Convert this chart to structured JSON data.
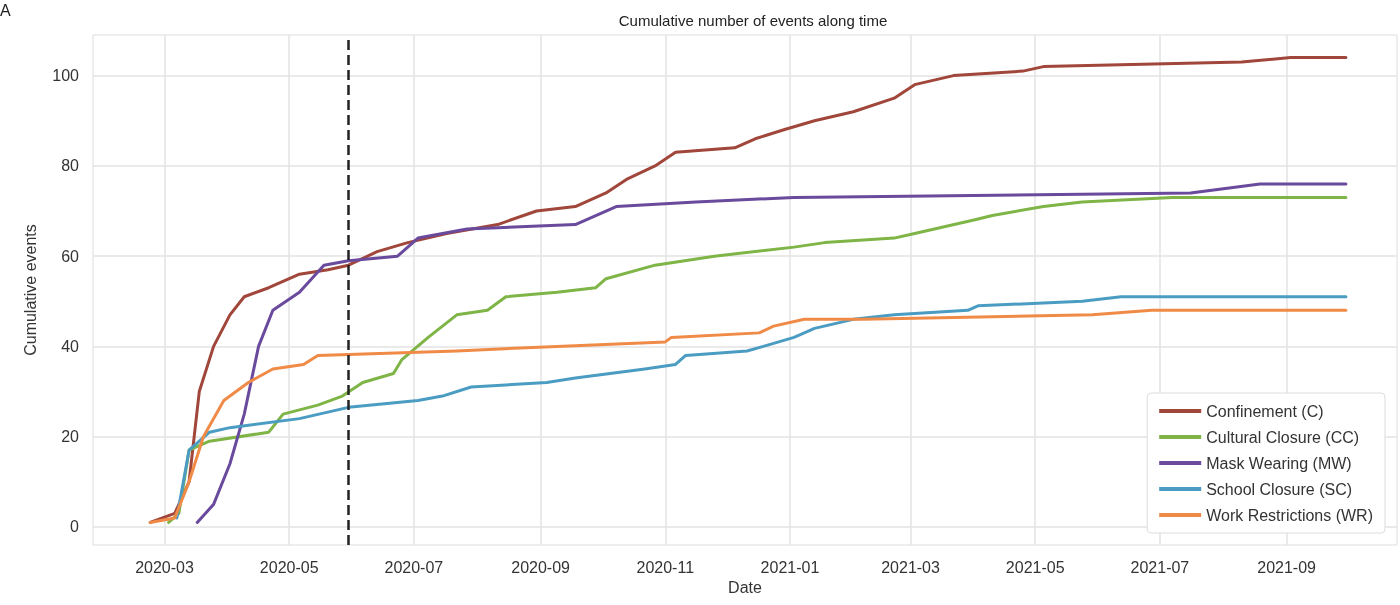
{
  "chart_data": {
    "type": "line",
    "title": "Cumulative number of events along time",
    "xlabel": "Date",
    "ylabel": "Cumulative events",
    "annotations": [
      "A"
    ],
    "xlim": [
      "2020-01-26",
      "2021-10-25"
    ],
    "ylim": [
      -4,
      109
    ],
    "xticks": [
      "2020-03",
      "2020-05",
      "2020-07",
      "2020-09",
      "2020-11",
      "2021-01",
      "2021-03",
      "2021-05",
      "2021-07",
      "2021-09"
    ],
    "yticks": [
      0,
      20,
      40,
      60,
      80,
      100
    ],
    "grid": true,
    "legend": "bottom right",
    "marker": "none",
    "line_style": "solid",
    "ref_lines": [
      {
        "axis": "x",
        "value": "2020-05-30",
        "color": "#222222",
        "line_style": "dashed"
      }
    ],
    "series": [
      {
        "name": "Confinement (C)",
        "color": "#a0463a",
        "x": [
          "2020-02-23",
          "2020-03-06",
          "2020-03-13",
          "2020-03-18",
          "2020-03-25",
          "2020-04-02",
          "2020-04-09",
          "2020-04-21",
          "2020-05-06",
          "2020-05-20",
          "2020-05-30",
          "2020-06-13",
          "2020-06-28",
          "2020-07-17",
          "2020-08-11",
          "2020-08-30",
          "2020-09-18",
          "2020-10-03",
          "2020-10-13",
          "2020-10-27",
          "2020-11-06",
          "2020-12-05",
          "2020-12-15",
          "2020-12-29",
          "2021-01-13",
          "2021-02-01",
          "2021-02-21",
          "2021-03-03",
          "2021-03-22",
          "2021-04-25",
          "2021-05-05",
          "2021-08-10",
          "2021-09-03",
          "2021-09-30"
        ],
        "values": [
          1,
          3,
          10,
          30,
          40,
          47,
          51,
          53,
          56,
          57,
          58,
          61,
          63,
          65,
          67,
          70,
          71,
          74,
          77,
          80,
          83,
          84,
          86,
          88,
          90,
          92,
          95,
          98,
          100,
          101,
          102,
          103,
          104,
          104
        ]
      },
      {
        "name": "Cultural Closure (CC)",
        "color": "#7fb446",
        "x": [
          "2020-03-03",
          "2020-03-08",
          "2020-03-13",
          "2020-03-23",
          "2020-04-21",
          "2020-04-28",
          "2020-05-15",
          "2020-05-27",
          "2020-06-06",
          "2020-06-21",
          "2020-06-25",
          "2020-07-08",
          "2020-07-22",
          "2020-08-06",
          "2020-08-15",
          "2020-09-09",
          "2020-09-28",
          "2020-10-03",
          "2020-10-27",
          "2020-11-25",
          "2021-01-03",
          "2021-01-18",
          "2021-02-21",
          "2021-03-03",
          "2021-04-01",
          "2021-04-10",
          "2021-05-05",
          "2021-05-24",
          "2021-07-07",
          "2021-09-30"
        ],
        "values": [
          1,
          3,
          17,
          19,
          21,
          25,
          27,
          29,
          32,
          34,
          37,
          42,
          47,
          48,
          51,
          52,
          53,
          55,
          58,
          60,
          62,
          63,
          64,
          65,
          68,
          69,
          71,
          72,
          73,
          73
        ]
      },
      {
        "name": "Mask Wearing (MW)",
        "color": "#6a4a9c",
        "x": [
          "2020-03-17",
          "2020-03-25",
          "2020-04-02",
          "2020-04-09",
          "2020-04-16",
          "2020-04-23",
          "2020-05-06",
          "2020-05-18",
          "2020-05-30",
          "2020-06-23",
          "2020-07-03",
          "2020-07-27",
          "2020-09-18",
          "2020-10-08",
          "2020-11-16",
          "2021-01-03",
          "2021-07-16",
          "2021-08-19",
          "2021-09-30"
        ],
        "values": [
          1,
          5,
          14,
          25,
          40,
          48,
          52,
          58,
          59,
          60,
          64,
          66,
          67,
          71,
          72,
          73,
          74,
          76,
          76
        ]
      },
      {
        "name": "School Closure (SC)",
        "color": "#4b9cc2",
        "x": [
          "2020-03-07",
          "2020-03-13",
          "2020-03-23",
          "2020-04-02",
          "2020-05-06",
          "2020-05-30",
          "2020-07-03",
          "2020-07-15",
          "2020-07-29",
          "2020-09-04",
          "2020-09-18",
          "2020-10-22",
          "2020-11-06",
          "2020-11-11",
          "2020-12-11",
          "2020-12-19",
          "2021-01-03",
          "2021-01-13",
          "2021-02-01",
          "2021-02-21",
          "2021-03-29",
          "2021-04-03",
          "2021-05-24",
          "2021-06-12",
          "2021-09-30"
        ],
        "values": [
          2,
          17,
          21,
          22,
          24,
          26.5,
          28,
          29,
          31,
          32,
          33,
          35,
          36,
          38,
          39,
          40,
          42,
          44,
          46,
          47,
          48,
          49,
          50,
          51,
          51
        ]
      },
      {
        "name": "Work Restrictions (WR)",
        "color": "#f08a47",
        "x": [
          "2020-02-23",
          "2020-03-06",
          "2020-03-13",
          "2020-03-20",
          "2020-03-30",
          "2020-04-11",
          "2020-04-23",
          "2020-05-08",
          "2020-05-15",
          "2020-07-22",
          "2020-09-09",
          "2020-11-01",
          "2020-11-04",
          "2020-12-17",
          "2020-12-24",
          "2021-01-08",
          "2021-02-06",
          "2021-05-29",
          "2021-06-27",
          "2021-09-30"
        ],
        "values": [
          1,
          2,
          10,
          20,
          28,
          32,
          35,
          36,
          38,
          39,
          40,
          41,
          42,
          43,
          44.5,
          46,
          46,
          47,
          48,
          48
        ]
      }
    ]
  }
}
